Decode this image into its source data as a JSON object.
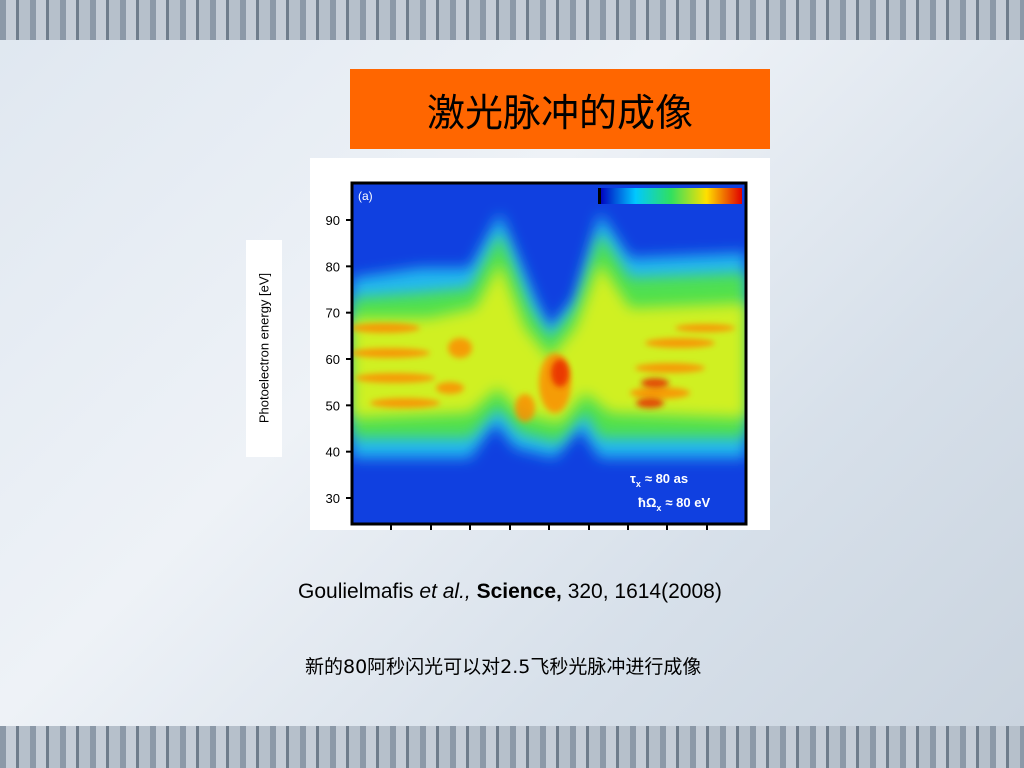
{
  "slide": {
    "title": "激光脉冲的成像"
  },
  "figure": {
    "panel_label": "(a)",
    "y_label": "Photoelectron energy [eV]",
    "yticks": [
      30,
      40,
      50,
      60,
      70,
      80,
      90
    ],
    "annotations": [
      {
        "symbol": "τ",
        "subscript": "x",
        "text": "≈ 80 as"
      },
      {
        "symbol": "ħΩ",
        "subscript": "x",
        "text": "≈ 80 eV"
      }
    ]
  },
  "citation": {
    "authors": "Goulielmafis",
    "etal": "et al.,",
    "journal": "Science,",
    "details": "320, 1614(2008)"
  },
  "caption": "新的80阿秒闪光可以对2.5飞秒光脉冲进行成像"
}
